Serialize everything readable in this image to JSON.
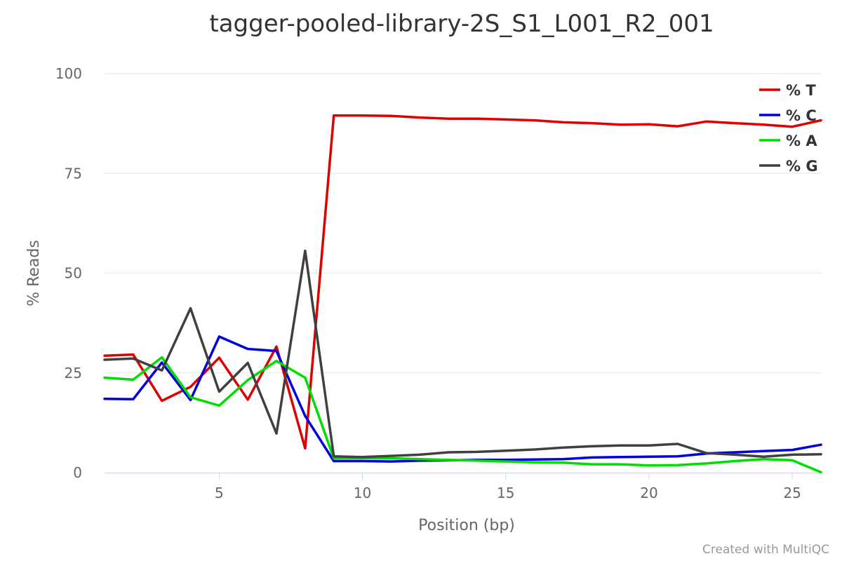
{
  "chart_data": {
    "type": "line",
    "title": "tagger-pooled-library-2S_S1_L001_R2_001",
    "xlabel": "Position (bp)",
    "ylabel": "% Reads",
    "xlim": [
      1,
      26
    ],
    "ylim": [
      0,
      100
    ],
    "x_ticks": [
      5,
      10,
      15,
      20,
      25
    ],
    "y_ticks": [
      0,
      25,
      50,
      75,
      100
    ],
    "grid": "horizontal",
    "legend_position": "top-right",
    "x": [
      1,
      2,
      3,
      4,
      5,
      6,
      7,
      8,
      9,
      10,
      11,
      12,
      13,
      14,
      15,
      16,
      17,
      18,
      19,
      20,
      21,
      22,
      23,
      24,
      25,
      26
    ],
    "series": [
      {
        "name": "% T",
        "color": "#dd0000",
        "values": [
          29.3,
          29.6,
          18.0,
          21.5,
          28.8,
          18.3,
          31.6,
          6.1,
          89.5,
          89.5,
          89.4,
          89.0,
          88.7,
          88.7,
          88.5,
          88.3,
          87.8,
          87.6,
          87.2,
          87.3,
          86.8,
          88.0,
          87.6,
          87.2,
          86.7,
          88.3
        ]
      },
      {
        "name": "% C",
        "color": "#0000dd",
        "values": [
          18.5,
          18.4,
          27.6,
          18.2,
          34.1,
          31.0,
          30.5,
          14.2,
          2.9,
          2.9,
          2.8,
          3.0,
          3.1,
          3.2,
          3.2,
          3.3,
          3.4,
          3.8,
          3.9,
          4.0,
          4.1,
          4.8,
          5.1,
          5.4,
          5.7,
          7.0
        ]
      },
      {
        "name": "% A",
        "color": "#00dd00",
        "values": [
          23.8,
          23.3,
          28.9,
          18.9,
          16.8,
          23.2,
          28.0,
          23.8,
          3.6,
          3.6,
          3.6,
          3.4,
          3.2,
          3.0,
          2.8,
          2.6,
          2.5,
          2.1,
          2.1,
          1.8,
          1.9,
          2.3,
          2.9,
          3.4,
          3.1,
          0.1
        ]
      },
      {
        "name": "% G",
        "color": "#404040",
        "values": [
          28.3,
          28.6,
          25.6,
          41.2,
          20.3,
          27.5,
          9.8,
          55.6,
          4.1,
          3.9,
          4.2,
          4.5,
          5.1,
          5.2,
          5.5,
          5.8,
          6.3,
          6.6,
          6.8,
          6.8,
          7.2,
          4.9,
          4.5,
          4.0,
          4.5,
          4.6
        ]
      }
    ]
  },
  "credit": "Created with MultiQC"
}
